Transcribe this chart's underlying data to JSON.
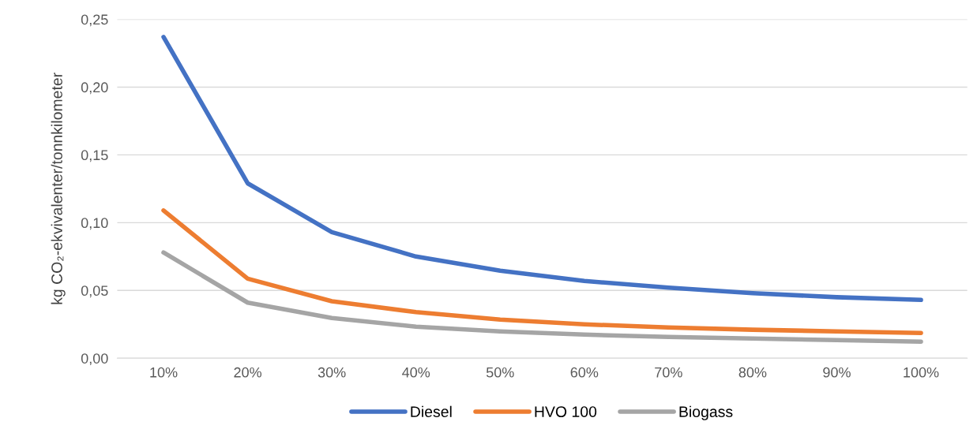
{
  "chart_data": {
    "type": "line",
    "ylabel": "kg CO₂-ekvivalenter/tonnkilometer",
    "categories": [
      "10%",
      "20%",
      "30%",
      "40%",
      "50%",
      "60%",
      "70%",
      "80%",
      "90%",
      "100%"
    ],
    "series": [
      {
        "name": "Diesel",
        "color": "#4472c4",
        "values": [
          0.237,
          0.129,
          0.093,
          0.075,
          0.0645,
          0.057,
          0.052,
          0.048,
          0.045,
          0.043
        ]
      },
      {
        "name": "HVO 100",
        "color": "#ed7d31",
        "values": [
          0.109,
          0.0587,
          0.042,
          0.034,
          0.0285,
          0.025,
          0.0227,
          0.021,
          0.0198,
          0.0186
        ]
      },
      {
        "name": "Biogass",
        "color": "#a5a5a5",
        "values": [
          0.078,
          0.041,
          0.0297,
          0.0233,
          0.0198,
          0.0174,
          0.0157,
          0.0145,
          0.0134,
          0.0122
        ]
      }
    ],
    "ylim": [
      0,
      0.25
    ],
    "yticks": [
      {
        "value": 0,
        "label": "0,00"
      },
      {
        "value": 0.05,
        "label": "0,05"
      },
      {
        "value": 0.1,
        "label": "0,10"
      },
      {
        "value": 0.15,
        "label": "0,15"
      },
      {
        "value": 0.2,
        "label": "0,20"
      },
      {
        "value": 0.25,
        "label": "0,25"
      }
    ],
    "grid": "y",
    "legend": "bottom",
    "marker": "none",
    "line_style": "solid"
  }
}
